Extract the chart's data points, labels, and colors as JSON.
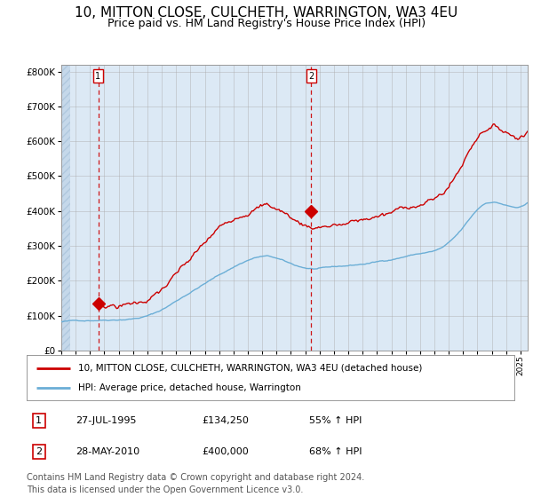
{
  "title": "10, MITTON CLOSE, CULCHETH, WARRINGTON, WA3 4EU",
  "subtitle": "Price paid vs. HM Land Registry's House Price Index (HPI)",
  "title_fontsize": 11,
  "subtitle_fontsize": 9,
  "plot_bg_color": "#dce9f5",
  "ylim": [
    0,
    820000
  ],
  "yticks": [
    0,
    100000,
    200000,
    300000,
    400000,
    500000,
    600000,
    700000,
    800000
  ],
  "ytick_labels": [
    "£0",
    "£100K",
    "£200K",
    "£300K",
    "£400K",
    "£500K",
    "£600K",
    "£700K",
    "£800K"
  ],
  "hpi_line_color": "#6baed6",
  "price_line_color": "#cc0000",
  "marker_color": "#cc0000",
  "dashed_line_color": "#cc0000",
  "grid_color": "#aaaaaa",
  "transaction1": {
    "date_num": 1995.57,
    "price": 134250,
    "label": "1"
  },
  "transaction2": {
    "date_num": 2010.4,
    "price": 400000,
    "label": "2"
  },
  "legend_price_label": "10, MITTON CLOSE, CULCHETH, WARRINGTON, WA3 4EU (detached house)",
  "legend_hpi_label": "HPI: Average price, detached house, Warrington",
  "annotation1": {
    "number": "1",
    "date": "27-JUL-1995",
    "price": "£134,250",
    "pct": "55% ↑ HPI"
  },
  "annotation2": {
    "number": "2",
    "date": "28-MAY-2010",
    "price": "£400,000",
    "pct": "68% ↑ HPI"
  },
  "footer": "Contains HM Land Registry data © Crown copyright and database right 2024.\nThis data is licensed under the Open Government Licence v3.0.",
  "footer_fontsize": 7,
  "xmin": 1993.0,
  "xmax": 2025.5
}
